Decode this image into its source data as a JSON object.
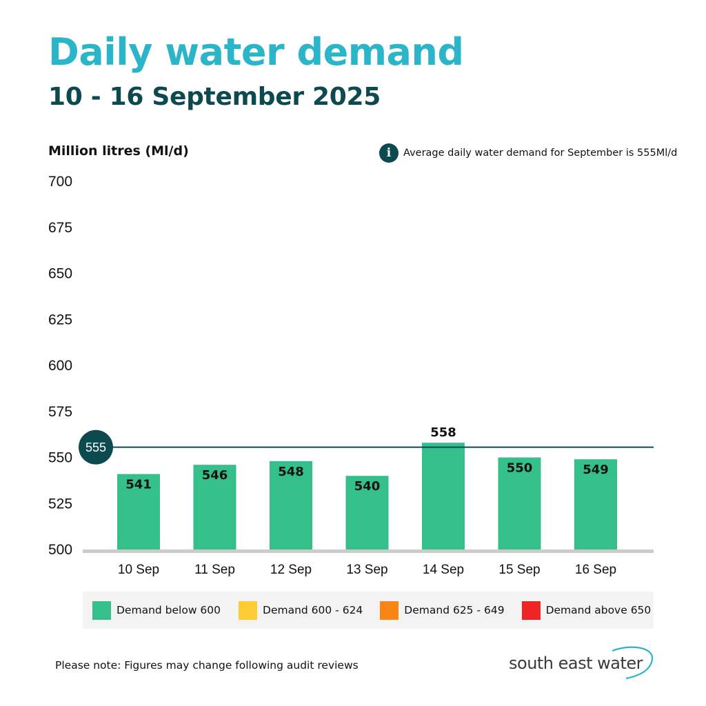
{
  "header": {
    "title": "Daily water demand",
    "subtitle": "10 - 16 September 2025"
  },
  "y_axis_label": "Million litres (Ml/d)",
  "info": {
    "icon": "info-icon",
    "symbol": "i",
    "text": "Average daily water demand for September is 555Ml/d"
  },
  "chart_data": {
    "type": "bar",
    "title": "Daily water demand",
    "ylabel": "Million litres (Ml/d)",
    "categories": [
      "10 Sep",
      "11 Sep",
      "12 Sep",
      "13 Sep",
      "14 Sep",
      "15 Sep",
      "16 Sep"
    ],
    "values": [
      541,
      546,
      548,
      540,
      558,
      550,
      549
    ],
    "ylim": [
      500,
      700
    ],
    "yticks": [
      500,
      525,
      550,
      575,
      600,
      625,
      650,
      675,
      700
    ],
    "grid": false,
    "bar_color": "#35bf8b",
    "reference_line": {
      "value": 555,
      "label": "555",
      "color": "#0d4a4f"
    }
  },
  "legend": [
    {
      "label": "Demand below 600",
      "color": "#35bf8b"
    },
    {
      "label": "Demand 600 - 624",
      "color": "#ffcc33"
    },
    {
      "label": "Demand 625 - 649",
      "color": "#f98614"
    },
    {
      "label": "Demand above 650",
      "color": "#ee2424"
    }
  ],
  "footer": {
    "note": "Please note: Figures may change following audit reviews",
    "logo": "south east water",
    "logo_color": "#2bb5c8"
  }
}
